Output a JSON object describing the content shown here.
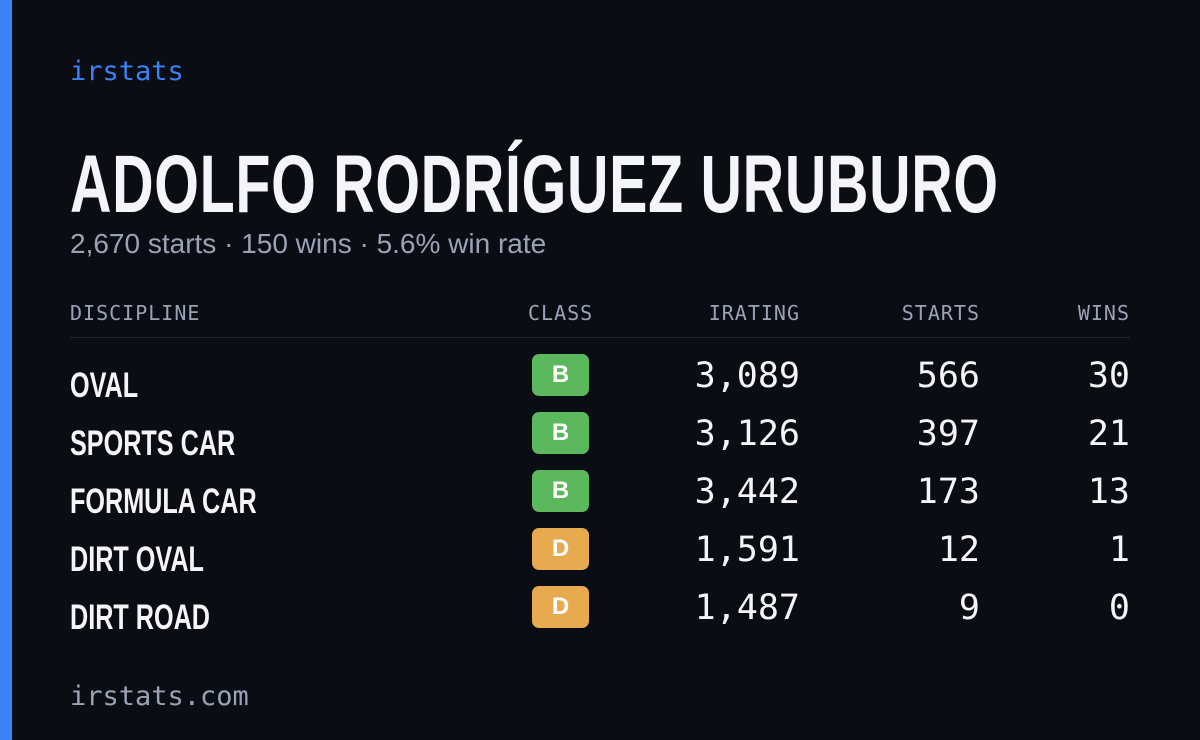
{
  "brand": "irstats",
  "driver": {
    "name": "ADOLFO RODRÍGUEZ URUBURO",
    "summary": "2,670 starts · 150 wins · 5.6% win rate"
  },
  "table": {
    "headers": [
      "DISCIPLINE",
      "CLASS",
      "IRATING",
      "STARTS",
      "WINS"
    ],
    "rows": [
      [
        "OVAL",
        "B",
        "3,089",
        "566",
        "30"
      ],
      [
        "SPORTS CAR",
        "B",
        "3,126",
        "397",
        "21"
      ],
      [
        "FORMULA CAR",
        "B",
        "3,442",
        "173",
        "13"
      ],
      [
        "DIRT OVAL",
        "D",
        "1,591",
        "12",
        "1"
      ],
      [
        "DIRT ROAD",
        "D",
        "1,487",
        "9",
        "0"
      ]
    ],
    "class_colors": {
      "B": "#5cb85c",
      "D": "#e8aa4e"
    }
  },
  "footer": "irstats.com"
}
